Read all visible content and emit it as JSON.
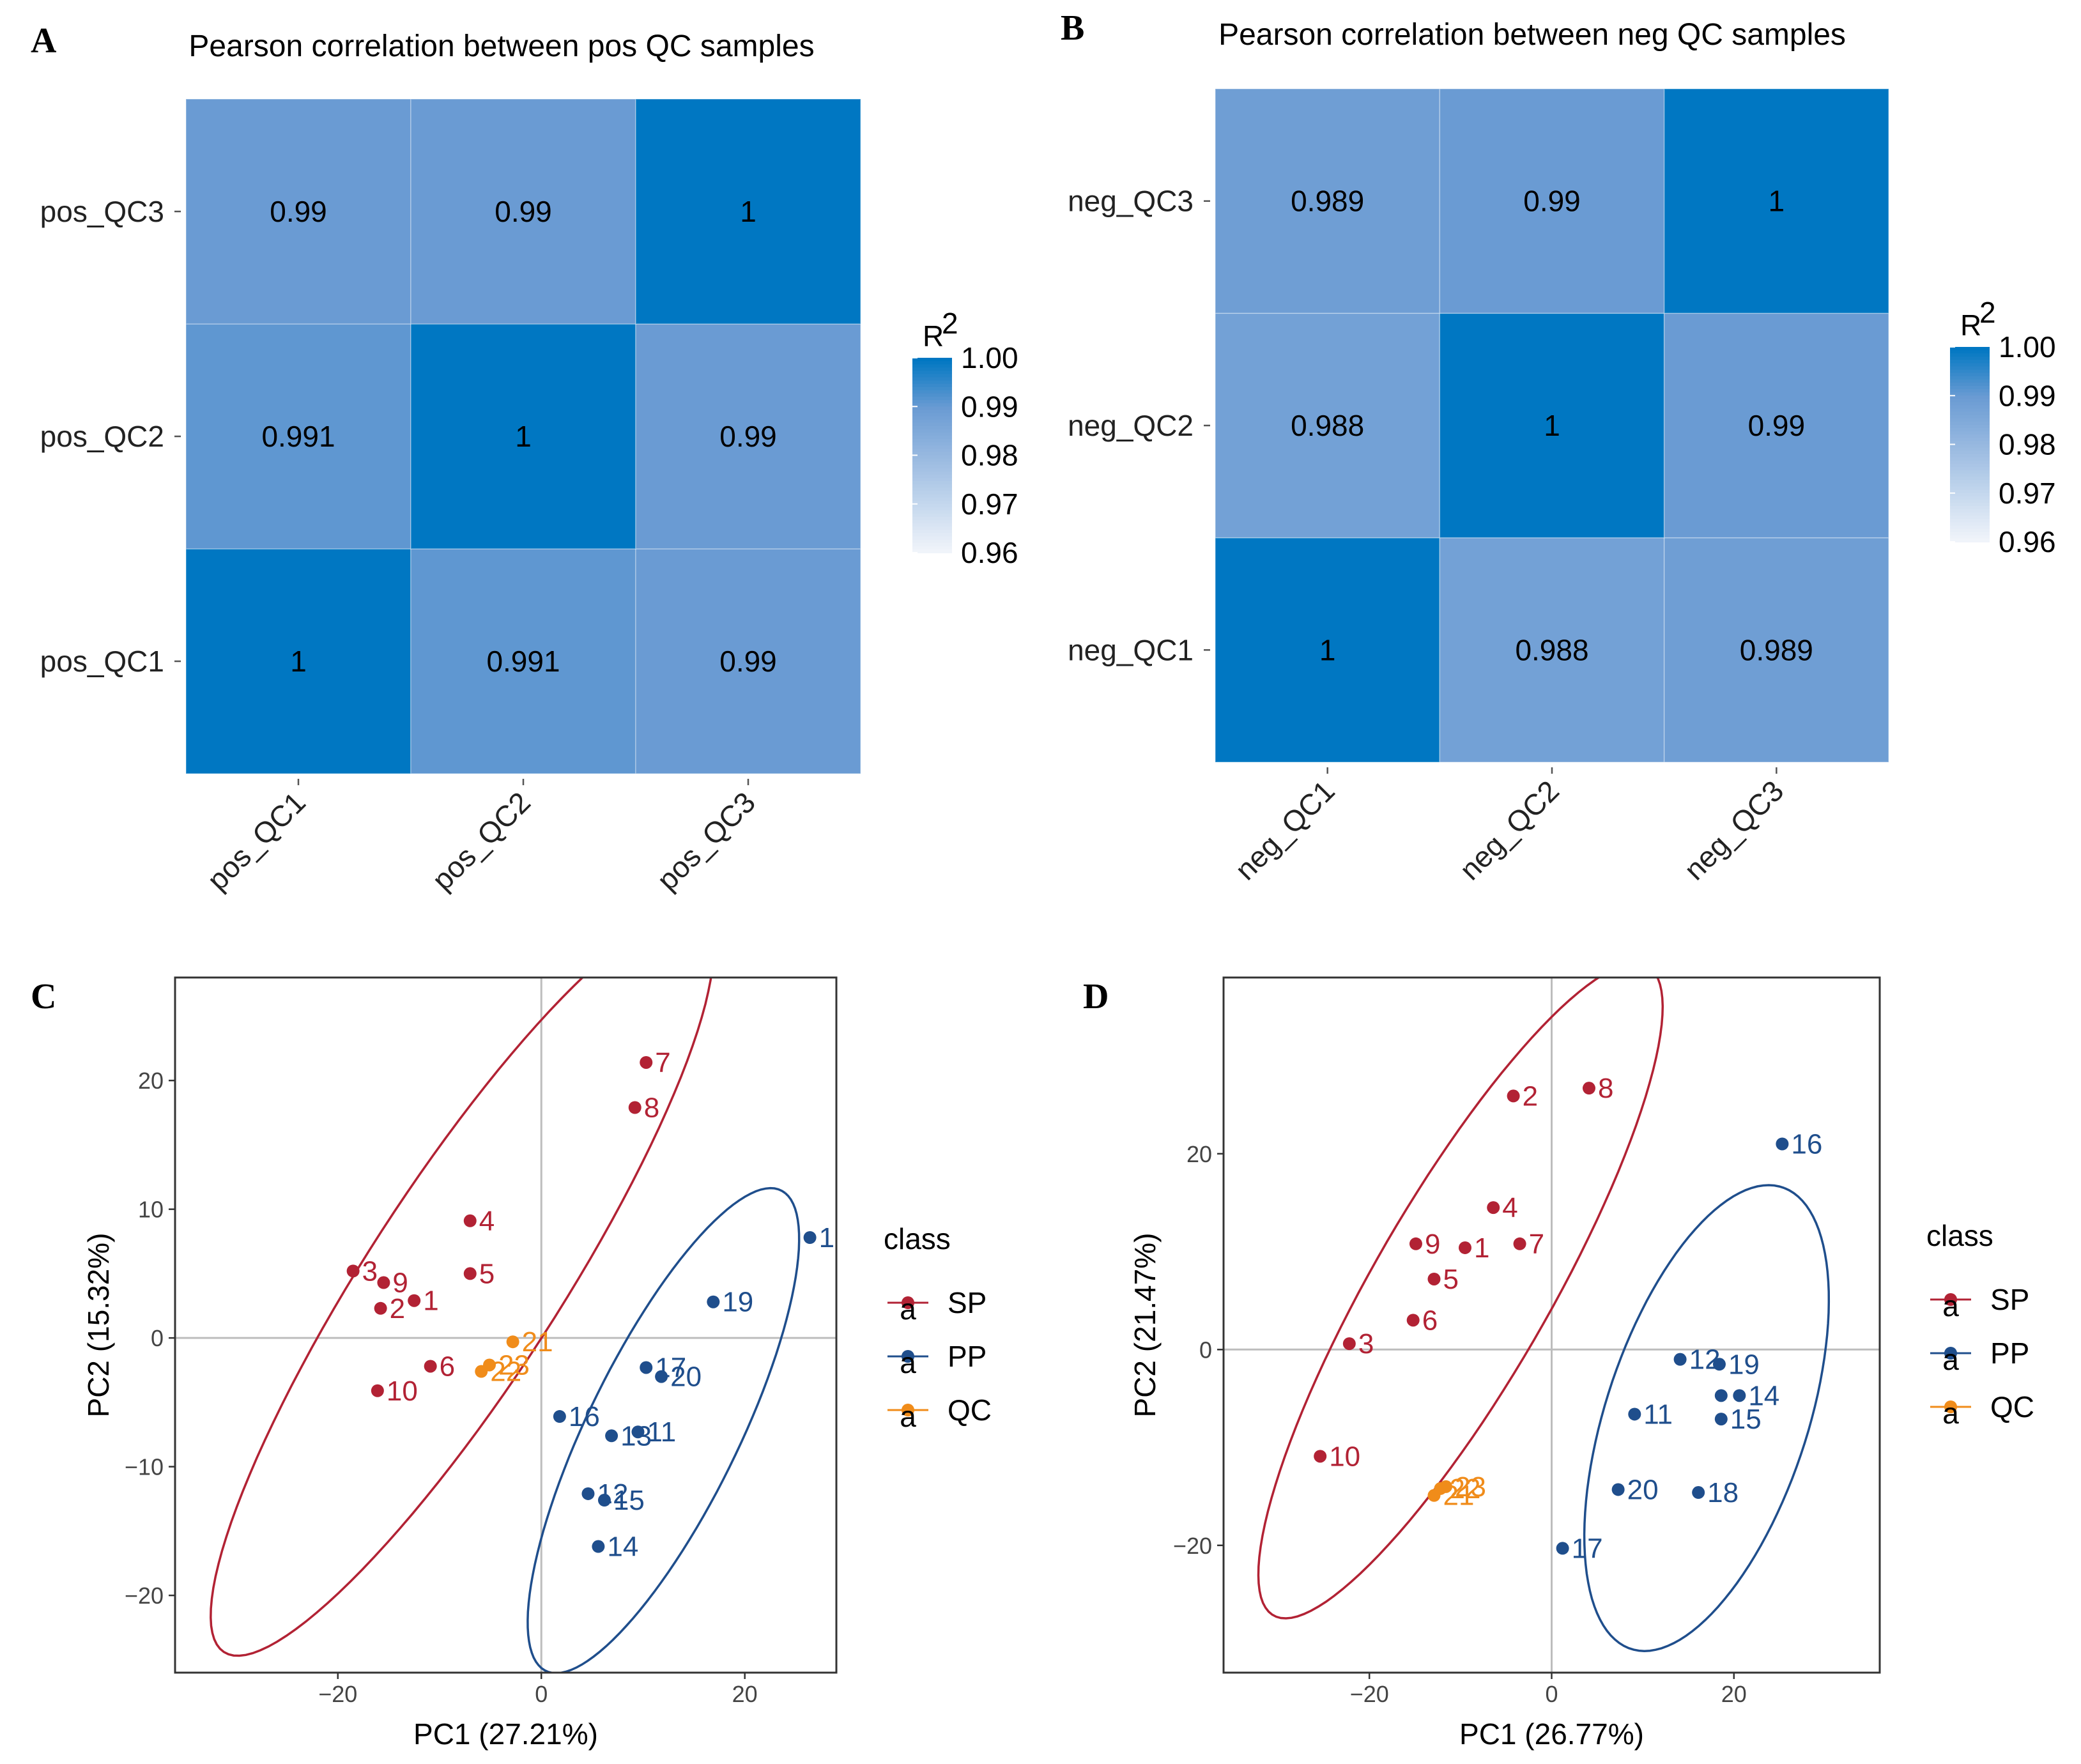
{
  "chart_data": [
    {
      "panel": "A",
      "type": "heatmap",
      "title": "Pearson correlation between pos QC samples",
      "x_labels": [
        "pos_QC1",
        "pos_QC2",
        "pos_QC3"
      ],
      "y_labels": [
        "pos_QC1",
        "pos_QC2",
        "pos_QC3"
      ],
      "matrix": [
        [
          1,
          0.991,
          0.99
        ],
        [
          0.991,
          1,
          0.99
        ],
        [
          0.99,
          0.99,
          1
        ]
      ],
      "cell_labels": [
        [
          "1",
          "0.991",
          "0.99"
        ],
        [
          "0.991",
          "1",
          "0.99"
        ],
        [
          "0.99",
          "0.99",
          "1"
        ]
      ],
      "legend": {
        "title": "R",
        "title_sup": "2",
        "range": [
          0.96,
          1.0
        ],
        "ticks": [
          "1.00",
          "0.99",
          "0.98",
          "0.97",
          "0.96"
        ],
        "tick_values": [
          1.0,
          0.99,
          0.98,
          0.97,
          0.96
        ]
      }
    },
    {
      "panel": "B",
      "type": "heatmap",
      "title": "Pearson correlation between neg QC samples",
      "x_labels": [
        "neg_QC1",
        "neg_QC2",
        "neg_QC3"
      ],
      "y_labels": [
        "neg_QC1",
        "neg_QC2",
        "neg_QC3"
      ],
      "matrix": [
        [
          1,
          0.988,
          0.989
        ],
        [
          0.988,
          1,
          0.99
        ],
        [
          0.989,
          0.99,
          1
        ]
      ],
      "cell_labels": [
        [
          "1",
          "0.988",
          "0.989"
        ],
        [
          "0.988",
          "1",
          "0.99"
        ],
        [
          "0.989",
          "0.99",
          "1"
        ]
      ],
      "legend": {
        "title": "R",
        "title_sup": "2",
        "range": [
          0.96,
          1.0
        ],
        "ticks": [
          "1.00",
          "0.99",
          "0.98",
          "0.97",
          "0.96"
        ],
        "tick_values": [
          1.0,
          0.99,
          0.98,
          0.97,
          0.96
        ]
      }
    },
    {
      "panel": "C",
      "type": "scatter",
      "xlabel": "PC1 (27.21%)",
      "ylabel": "PC2 (15.32%)",
      "xlim": [
        -36,
        29
      ],
      "ylim": [
        -26,
        28
      ],
      "xticks": [
        -20,
        0,
        20
      ],
      "xtick_labels": [
        "−20",
        "0",
        "20"
      ],
      "yticks": [
        -20,
        -10,
        0,
        10,
        20
      ],
      "ytick_labels": [
        "−20",
        "−10",
        "0",
        "10",
        "20"
      ],
      "legend": {
        "title": "class",
        "entries": [
          "SP",
          "PP",
          "QC"
        ],
        "key_glyph": "a"
      },
      "colors": {
        "SP": "#B22234",
        "PP": "#1F4E8C",
        "QC": "#F08C1A"
      },
      "points": [
        {
          "label": "1",
          "class": "SP",
          "x": -12.5,
          "y": 2.9
        },
        {
          "label": "2",
          "class": "SP",
          "x": -15.8,
          "y": 2.3
        },
        {
          "label": "3",
          "class": "SP",
          "x": -18.5,
          "y": 5.2
        },
        {
          "label": "4",
          "class": "SP",
          "x": -7.0,
          "y": 9.1
        },
        {
          "label": "5",
          "class": "SP",
          "x": -7.0,
          "y": 5.0
        },
        {
          "label": "6",
          "class": "SP",
          "x": -10.9,
          "y": -2.2
        },
        {
          "label": "7",
          "class": "SP",
          "x": 10.3,
          "y": 21.4
        },
        {
          "label": "8",
          "class": "SP",
          "x": 9.2,
          "y": 17.9
        },
        {
          "label": "9",
          "class": "SP",
          "x": -15.5,
          "y": 4.3
        },
        {
          "label": "10",
          "class": "SP",
          "x": -16.1,
          "y": -4.1
        },
        {
          "label": "11",
          "class": "PP",
          "x": 9.5,
          "y": -7.3
        },
        {
          "label": "1",
          "class": "PP",
          "x": 26.4,
          "y": 7.8
        },
        {
          "label": "12",
          "class": "PP",
          "x": 4.6,
          "y": -12.1
        },
        {
          "label": "13",
          "class": "PP",
          "x": 6.9,
          "y": -7.6
        },
        {
          "label": "14",
          "class": "PP",
          "x": 5.6,
          "y": -16.2
        },
        {
          "label": "15",
          "class": "PP",
          "x": 6.2,
          "y": -12.6
        },
        {
          "label": "16",
          "class": "PP",
          "x": 1.8,
          "y": -6.1
        },
        {
          "label": "17",
          "class": "PP",
          "x": 10.3,
          "y": -2.3
        },
        {
          "label": "19",
          "class": "PP",
          "x": 16.9,
          "y": 2.8
        },
        {
          "label": "20",
          "class": "PP",
          "x": 11.8,
          "y": -3.0
        },
        {
          "label": "21",
          "class": "QC",
          "x": -2.8,
          "y": -0.3
        },
        {
          "label": "22",
          "class": "QC",
          "x": -5.9,
          "y": -2.6
        },
        {
          "label": "23",
          "class": "QC",
          "x": -5.1,
          "y": -2.1
        }
      ],
      "ellipses": [
        {
          "class": "SP",
          "cx": -7.8,
          "cy": 4.2,
          "rx": 37.0,
          "ry": 8.7,
          "angle_deg": 50
        },
        {
          "class": "PP",
          "cx": 12.0,
          "cy": -7.2,
          "rx": 22.0,
          "ry": 7.0,
          "angle_deg": 57
        }
      ]
    },
    {
      "panel": "D",
      "type": "scatter",
      "xlabel": "PC1 (26.77%)",
      "ylabel": "PC2 (21.47%)",
      "xlim": [
        -36,
        36
      ],
      "ylim": [
        -33,
        38
      ],
      "xticks": [
        -20,
        0,
        20
      ],
      "xtick_labels": [
        "−20",
        "0",
        "20"
      ],
      "yticks": [
        -20,
        0,
        20
      ],
      "ytick_labels": [
        "−20",
        "0",
        "20"
      ],
      "legend": {
        "title": "class",
        "entries": [
          "SP",
          "PP",
          "QC"
        ],
        "key_glyph": "a"
      },
      "colors": {
        "SP": "#B22234",
        "PP": "#1F4E8C",
        "QC": "#F08C1A"
      },
      "points": [
        {
          "label": "1",
          "class": "SP",
          "x": -9.5,
          "y": 10.4
        },
        {
          "label": "2",
          "class": "SP",
          "x": -4.2,
          "y": 25.9
        },
        {
          "label": "3",
          "class": "SP",
          "x": -22.2,
          "y": 0.6
        },
        {
          "label": "4",
          "class": "SP",
          "x": -6.4,
          "y": 14.5
        },
        {
          "label": "5",
          "class": "SP",
          "x": -12.9,
          "y": 7.2
        },
        {
          "label": "6",
          "class": "SP",
          "x": -15.2,
          "y": 3.0
        },
        {
          "label": "7",
          "class": "SP",
          "x": -3.5,
          "y": 10.8
        },
        {
          "label": "8",
          "class": "SP",
          "x": 4.1,
          "y": 26.7
        },
        {
          "label": "9",
          "class": "SP",
          "x": -14.9,
          "y": 10.8
        },
        {
          "label": "10",
          "class": "SP",
          "x": -25.4,
          "y": -10.9
        },
        {
          "label": "11",
          "class": "PP",
          "x": 9.1,
          "y": -6.6
        },
        {
          "label": "12",
          "class": "PP",
          "x": 14.1,
          "y": -1.0
        },
        {
          "label": "14",
          "class": "PP",
          "x": 20.6,
          "y": -4.7
        },
        {
          "label": "15",
          "class": "PP",
          "x": 18.6,
          "y": -7.1
        },
        {
          "label": "16",
          "class": "PP",
          "x": 25.3,
          "y": 21.0
        },
        {
          "label": "17",
          "class": "PP",
          "x": 1.2,
          "y": -20.3
        },
        {
          "label": "18",
          "class": "PP",
          "x": 16.1,
          "y": -14.6
        },
        {
          "label": "19",
          "class": "PP",
          "x": 18.4,
          "y": -1.5
        },
        {
          "label": "20",
          "class": "PP",
          "x": 7.3,
          "y": -14.3
        },
        {
          "label": "",
          "class": "PP",
          "x": 18.6,
          "y": -4.7
        },
        {
          "label": "21",
          "class": "QC",
          "x": -12.9,
          "y": -14.9
        },
        {
          "label": "22",
          "class": "QC",
          "x": -12.2,
          "y": -14.2
        },
        {
          "label": "23",
          "class": "QC",
          "x": -11.6,
          "y": -14.0
        }
      ],
      "ellipses": [
        {
          "class": "SP",
          "cx": -10.0,
          "cy": 6.0,
          "rx": 39.0,
          "ry": 9.5,
          "angle_deg": 58
        },
        {
          "class": "PP",
          "cx": 17.0,
          "cy": -7.0,
          "rx": 25.0,
          "ry": 11.0,
          "angle_deg": 70
        }
      ]
    }
  ],
  "panel_letters": [
    "A",
    "B",
    "C",
    "D"
  ],
  "heatmap_colors": {
    "high": "#0077C2",
    "mid": "#6A9BD3",
    "low": "#F3F6FB"
  }
}
